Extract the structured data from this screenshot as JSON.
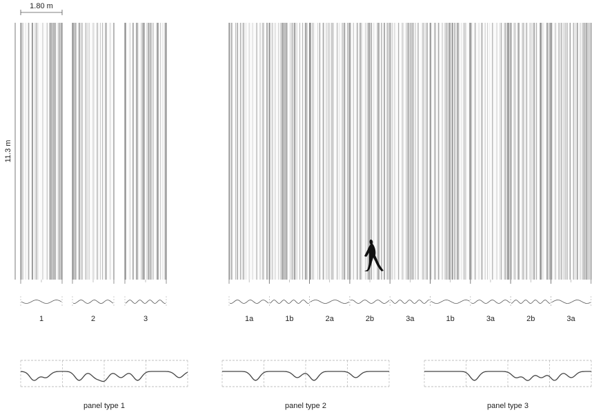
{
  "dimensions": {
    "width_label": "1.80 m",
    "height_label": "11.3 m"
  },
  "left_panels": [
    "1",
    "2",
    "3"
  ],
  "right_panels": [
    "1a",
    "1b",
    "2a",
    "2b",
    "3a",
    "1b",
    "3a",
    "2b",
    "3a"
  ],
  "panel_types": [
    "panel type 1",
    "panel type 2",
    "panel type 3"
  ]
}
